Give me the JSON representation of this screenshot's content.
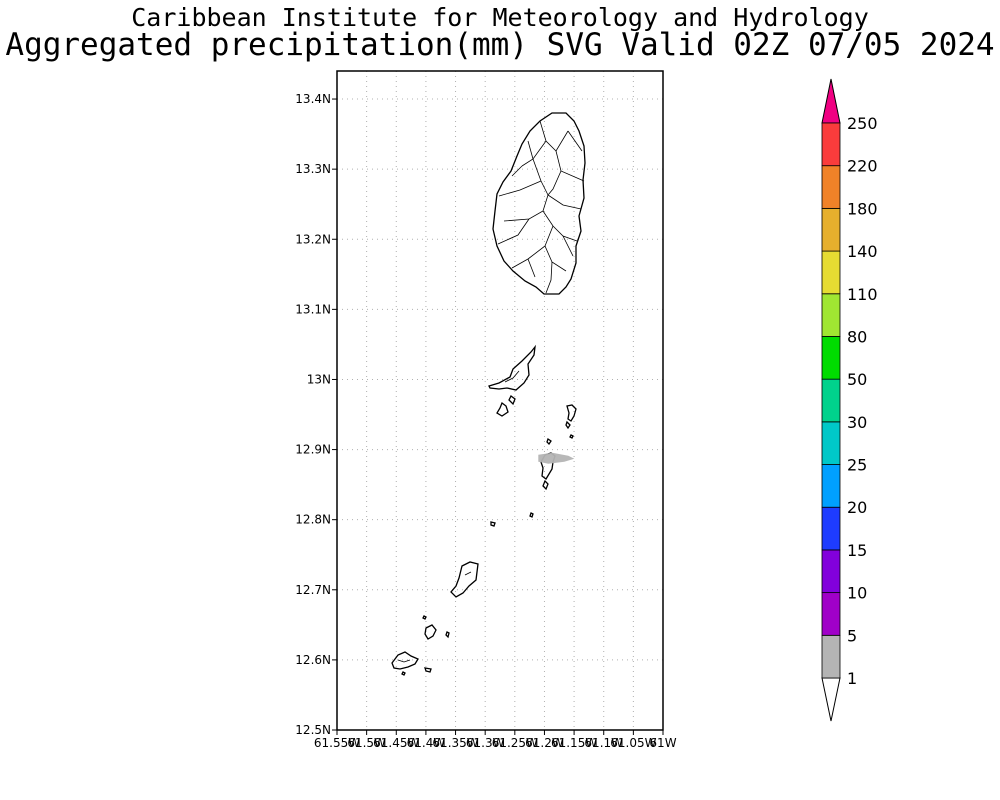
{
  "header": {
    "title": "Caribbean Institute for Meteorology and Hydrology",
    "subtitle": "Aggregated precipitation(mm) SVG Valid 02Z 07/05 2024"
  },
  "map": {
    "lat_range": [
      12.5,
      13.44
    ],
    "lon_range": [
      -61.55,
      -61.0
    ],
    "lat_ticks": [
      {
        "value": 13.4,
        "label": "13.4N"
      },
      {
        "value": 13.3,
        "label": "13.3N"
      },
      {
        "value": 13.2,
        "label": "13.2N"
      },
      {
        "value": 13.1,
        "label": "13.1N"
      },
      {
        "value": 13.0,
        "label": "13N"
      },
      {
        "value": 12.9,
        "label": "12.9N"
      },
      {
        "value": 12.8,
        "label": "12.8N"
      },
      {
        "value": 12.7,
        "label": "12.7N"
      },
      {
        "value": 12.6,
        "label": "12.6N"
      },
      {
        "value": 12.5,
        "label": "12.5N"
      }
    ],
    "lon_ticks": [
      {
        "value": -61.55,
        "label": "61.55W"
      },
      {
        "value": -61.5,
        "label": "61.5W"
      },
      {
        "value": -61.45,
        "label": "61.45W"
      },
      {
        "value": -61.4,
        "label": "61.4W"
      },
      {
        "value": -61.35,
        "label": "61.35W"
      },
      {
        "value": -61.3,
        "label": "61.3W"
      },
      {
        "value": -61.25,
        "label": "61.25W"
      },
      {
        "value": -61.2,
        "label": "61.2W"
      },
      {
        "value": -61.15,
        "label": "61.15W"
      },
      {
        "value": -61.1,
        "label": "61.1W"
      },
      {
        "value": -61.05,
        "label": "61.05W"
      },
      {
        "value": -61.0,
        "label": "61W"
      }
    ],
    "grid": true,
    "precip_patches": [
      {
        "lon": -61.18,
        "lat": 12.887,
        "class": "1-5"
      }
    ]
  },
  "colorbar": {
    "levels": [
      "1",
      "5",
      "10",
      "15",
      "20",
      "25",
      "30",
      "50",
      "80",
      "110",
      "140",
      "180",
      "220",
      "250"
    ],
    "colors": [
      "#b4b4b4",
      "#a000c8",
      "#8200dc",
      "#1e3cff",
      "#00a0ff",
      "#00c8c8",
      "#00d28c",
      "#00dc00",
      "#a0e632",
      "#e6dc32",
      "#e6af2d",
      "#f08228",
      "#fa3c3c",
      "#f00082"
    ],
    "under_color": "#ffffff",
    "over_color": "#f00082"
  }
}
